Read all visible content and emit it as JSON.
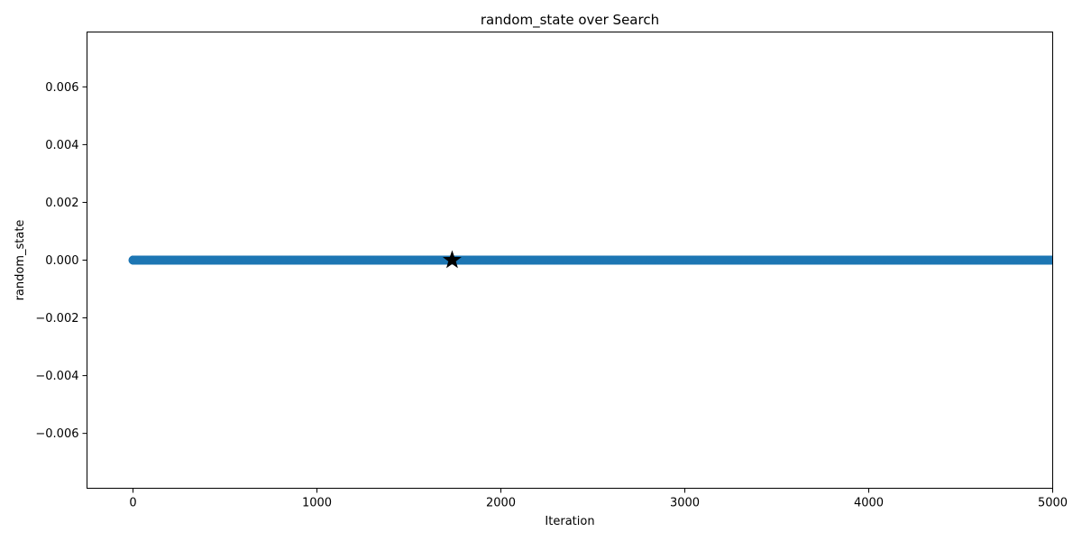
{
  "chart_data": {
    "type": "scatter",
    "title": "random_state over Search",
    "xlabel": "Iteration",
    "ylabel": "random_state",
    "xlim": [
      -250,
      5000
    ],
    "ylim": [
      -0.0079,
      0.0079
    ],
    "x_ticks": [
      0,
      1000,
      2000,
      3000,
      4000,
      5000
    ],
    "x_tick_labels": [
      "0",
      "1000",
      "2000",
      "3000",
      "4000",
      "5000"
    ],
    "y_ticks": [
      0.006,
      0.004,
      0.002,
      0.0,
      -0.002,
      -0.004,
      -0.006
    ],
    "y_tick_labels": [
      "0.006",
      "0.004",
      "0.002",
      "0.000",
      "−0.002",
      "−0.004",
      "−0.006"
    ],
    "grid": false,
    "legend": "none",
    "series": [
      {
        "x_range": [
          0,
          5000
        ],
        "x_step": 1,
        "y_constant": 0.0,
        "marker": "circle",
        "color": "#1f77b4"
      }
    ],
    "highlight": {
      "x": 1735,
      "y": 0.0,
      "marker": "star",
      "color": "#000000"
    }
  }
}
